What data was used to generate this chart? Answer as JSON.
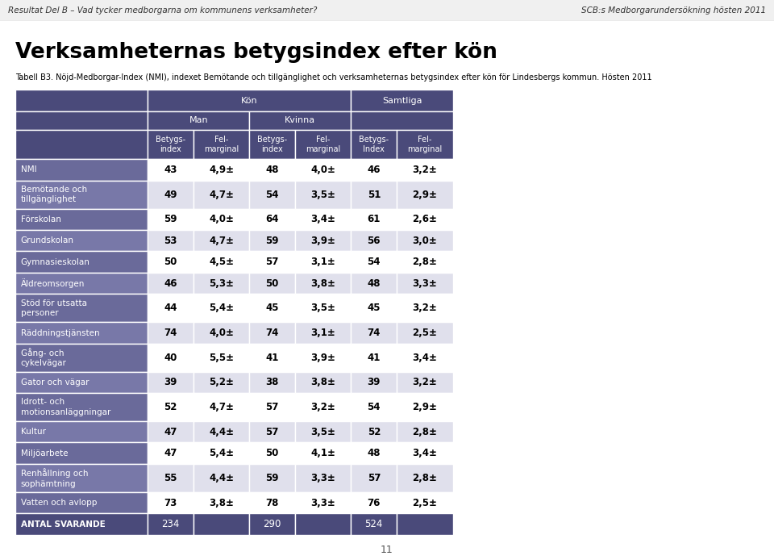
{
  "header_top": "Resultat Del B – Vad tycker medborgarna om kommunens verksamheter?",
  "header_right": "SCB:s Medborgarundersökning hösten 2011",
  "title": "Verksamheternas betygsindex efter kön",
  "subtitle": "Tabell B3. Nöjd-Medborgar-Index (NMI), indexet Bemötande och tillgänglighet och verksamheternas betygsindex efter kön för Lindesbergs kommun. Hösten 2011",
  "col_headers_l3": [
    "Betygs-\nindex",
    "Fel-\nmarginal",
    "Betygs-\nindex",
    "Fel-\nmarginal",
    "Betygs-\nIndex",
    "Fel-\nmarginal"
  ],
  "rows": [
    [
      "NMI",
      "43",
      "4,9±",
      "48",
      "4,0±",
      "46",
      "3,2±"
    ],
    [
      "Bemötande och\ntillgänglighet",
      "49",
      "4,7±",
      "54",
      "3,5±",
      "51",
      "2,9±"
    ],
    [
      "Förskolan",
      "59",
      "4,0±",
      "64",
      "3,4±",
      "61",
      "2,6±"
    ],
    [
      "Grundskolan",
      "53",
      "4,7±",
      "59",
      "3,9±",
      "56",
      "3,0±"
    ],
    [
      "Gymnasieskolan",
      "50",
      "4,5±",
      "57",
      "3,1±",
      "54",
      "2,8±"
    ],
    [
      "Äldreomsorgen",
      "46",
      "5,3±",
      "50",
      "3,8±",
      "48",
      "3,3±"
    ],
    [
      "Stöd för utsatta\npersoner",
      "44",
      "5,4±",
      "45",
      "3,5±",
      "45",
      "3,2±"
    ],
    [
      "Räddningstjänsten",
      "74",
      "4,0±",
      "74",
      "3,1±",
      "74",
      "2,5±"
    ],
    [
      "Gång- och\ncykelvägar",
      "40",
      "5,5±",
      "41",
      "3,9±",
      "41",
      "3,4±"
    ],
    [
      "Gator och vägar",
      "39",
      "5,2±",
      "38",
      "3,8±",
      "39",
      "3,2±"
    ],
    [
      "Idrott- och\nmotionsanläggningar",
      "52",
      "4,7±",
      "57",
      "3,2±",
      "54",
      "2,9±"
    ],
    [
      "Kultur",
      "47",
      "4,4±",
      "57",
      "3,5±",
      "52",
      "2,8±"
    ],
    [
      "Miljöarbete",
      "47",
      "5,4±",
      "50",
      "4,1±",
      "48",
      "3,4±"
    ],
    [
      "Renhållning och\nsophämtning",
      "55",
      "4,4±",
      "59",
      "3,3±",
      "57",
      "2,8±"
    ],
    [
      "Vatten och avlopp",
      "73",
      "3,8±",
      "78",
      "3,3±",
      "76",
      "2,5±"
    ],
    [
      "ANTAL SVARANDE",
      "234",
      "",
      "290",
      "",
      "524",
      ""
    ]
  ],
  "header_bg": "#4a4a7a",
  "header_fg": "#ffffff",
  "row_bg_even": "#ffffff",
  "row_bg_odd": "#e0e0ec",
  "label_bg_even": "#6a6a9a",
  "label_bg_odd": "#7878a8",
  "label_fg": "#ffffff",
  "last_row_bg": "#4a4a7a",
  "last_row_fg": "#ffffff",
  "page_num": "11",
  "figsize": [
    9.6,
    6.94
  ]
}
